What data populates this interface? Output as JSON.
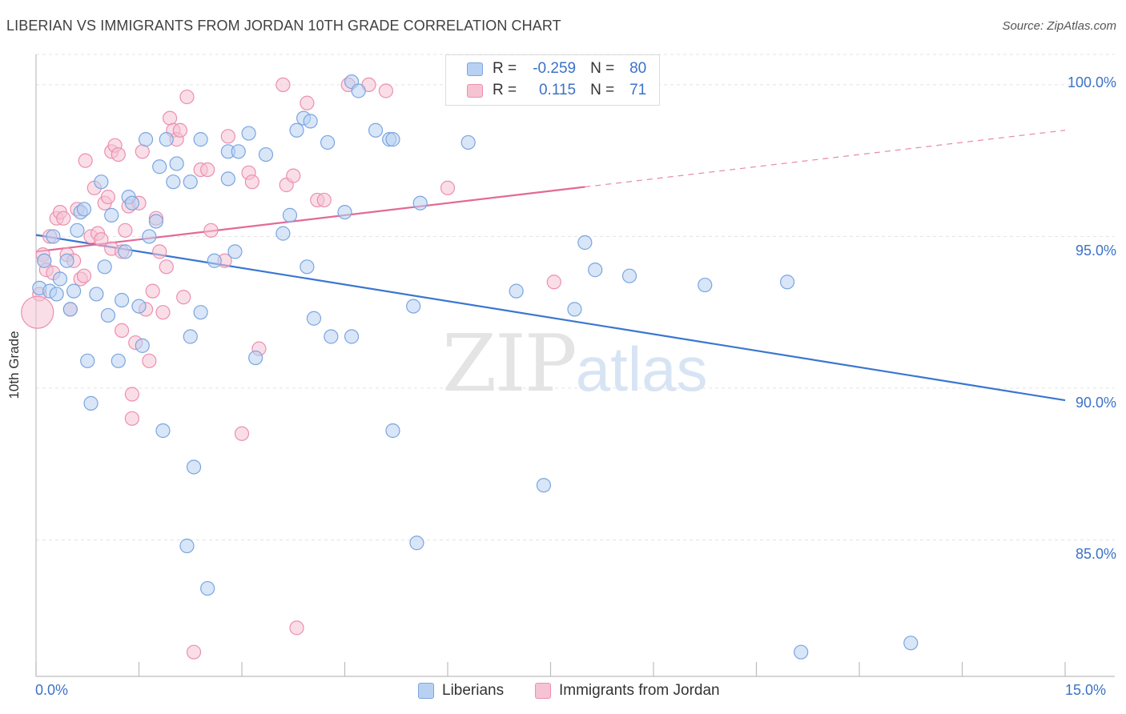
{
  "header": {
    "title": "LIBERIAN VS IMMIGRANTS FROM JORDAN 10TH GRADE CORRELATION CHART",
    "source": "Source: ZipAtlas.com"
  },
  "watermark": {
    "part_a": "ZIP",
    "part_b": "atlas"
  },
  "legend_top": {
    "rows": [
      {
        "r_label": "R =",
        "r_value": "-0.259",
        "n_label": "N =",
        "n_value": "80"
      },
      {
        "r_label": "R =",
        "r_value": "0.115",
        "n_label": "N =",
        "n_value": "71"
      }
    ]
  },
  "legend_bottom": {
    "items": [
      "Liberians",
      "Immigrants from Jordan"
    ]
  },
  "colors": {
    "blue_fill": "#b8d1f3",
    "blue_stroke": "#7ba5e0",
    "blue_line": "#3a76d0",
    "pink_fill": "#f6c3d3",
    "pink_stroke": "#ec8fae",
    "pink_line": "#e26a96",
    "grid": "#e3e3e3",
    "tick_text": "#3b72c8"
  },
  "chart_data": {
    "type": "scatter",
    "title": "LIBERIAN VS IMMIGRANTS FROM JORDAN 10TH GRADE CORRELATION CHART",
    "xlabel": "",
    "ylabel": "10th Grade",
    "xlim": [
      0,
      15
    ],
    "ylim": [
      80.5,
      101.0
    ],
    "x_tick_labels": [
      "0.0%",
      "15.0%"
    ],
    "y_ticks": [
      85,
      90,
      95,
      100
    ],
    "y_tick_labels": [
      "85.0%",
      "90.0%",
      "95.0%",
      "100.0%"
    ],
    "grid": true,
    "legend_position": "top-center",
    "series": [
      {
        "name": "Liberians",
        "r": -0.259,
        "n": 80,
        "trend": {
          "x_start": 0,
          "y_start": 95.05,
          "x_end": 15,
          "y_end": 89.6,
          "dashed_from_x": null
        },
        "points": [
          [
            0.05,
            93.3
          ],
          [
            0.12,
            94.2
          ],
          [
            0.2,
            93.2
          ],
          [
            0.25,
            95.0
          ],
          [
            0.3,
            93.1
          ],
          [
            0.35,
            93.6
          ],
          [
            0.45,
            94.2
          ],
          [
            0.5,
            92.6
          ],
          [
            0.55,
            93.2
          ],
          [
            0.6,
            95.2
          ],
          [
            0.65,
            95.8
          ],
          [
            0.7,
            95.9
          ],
          [
            0.75,
            90.9
          ],
          [
            0.8,
            89.5
          ],
          [
            0.88,
            93.1
          ],
          [
            0.95,
            96.8
          ],
          [
            1.0,
            94.0
          ],
          [
            1.05,
            92.4
          ],
          [
            1.1,
            95.7
          ],
          [
            1.2,
            90.9
          ],
          [
            1.25,
            92.9
          ],
          [
            1.3,
            94.5
          ],
          [
            1.35,
            96.3
          ],
          [
            1.4,
            96.1
          ],
          [
            1.5,
            92.7
          ],
          [
            1.55,
            91.4
          ],
          [
            1.6,
            98.2
          ],
          [
            1.65,
            95.0
          ],
          [
            1.75,
            95.5
          ],
          [
            1.8,
            97.3
          ],
          [
            1.85,
            88.6
          ],
          [
            1.9,
            98.2
          ],
          [
            2.0,
            96.8
          ],
          [
            2.05,
            97.4
          ],
          [
            2.2,
            84.8
          ],
          [
            2.25,
            96.8
          ],
          [
            2.25,
            91.7
          ],
          [
            2.3,
            87.4
          ],
          [
            2.4,
            98.2
          ],
          [
            2.4,
            92.5
          ],
          [
            2.5,
            83.4
          ],
          [
            2.6,
            94.2
          ],
          [
            2.8,
            97.8
          ],
          [
            2.8,
            96.9
          ],
          [
            2.9,
            94.5
          ],
          [
            2.95,
            97.8
          ],
          [
            3.1,
            98.4
          ],
          [
            3.2,
            91.0
          ],
          [
            3.35,
            97.7
          ],
          [
            3.6,
            95.1
          ],
          [
            3.7,
            95.7
          ],
          [
            3.8,
            98.5
          ],
          [
            3.9,
            98.9
          ],
          [
            3.95,
            94.0
          ],
          [
            4.0,
            98.8
          ],
          [
            4.05,
            92.3
          ],
          [
            4.25,
            98.1
          ],
          [
            4.3,
            91.7
          ],
          [
            4.5,
            95.8
          ],
          [
            4.6,
            91.7
          ],
          [
            4.6,
            100.1
          ],
          [
            4.7,
            99.8
          ],
          [
            4.95,
            98.5
          ],
          [
            5.15,
            98.2
          ],
          [
            5.2,
            98.2
          ],
          [
            5.2,
            88.6
          ],
          [
            5.5,
            92.7
          ],
          [
            5.55,
            84.9
          ],
          [
            5.6,
            96.1
          ],
          [
            6.3,
            98.1
          ],
          [
            7.0,
            93.2
          ],
          [
            7.4,
            86.8
          ],
          [
            7.85,
            92.6
          ],
          [
            8.0,
            94.8
          ],
          [
            8.15,
            93.9
          ],
          [
            8.65,
            93.7
          ],
          [
            9.75,
            93.4
          ],
          [
            10.95,
            93.5
          ],
          [
            11.15,
            81.3
          ],
          [
            12.75,
            81.6
          ]
        ]
      },
      {
        "name": "Immigrants from Jordan",
        "r": 0.115,
        "n": 71,
        "trend": {
          "x_start": 0,
          "y_start": 94.5,
          "x_end": 15,
          "y_end": 98.5,
          "dashed_from_x": 8.0
        },
        "points": [
          [
            0.05,
            93.1
          ],
          [
            0.1,
            94.4
          ],
          [
            0.12,
            94.2
          ],
          [
            0.15,
            93.9
          ],
          [
            0.2,
            95.0
          ],
          [
            0.25,
            93.8
          ],
          [
            0.3,
            95.6
          ],
          [
            0.35,
            95.8
          ],
          [
            0.4,
            95.6
          ],
          [
            0.45,
            94.4
          ],
          [
            0.5,
            92.6
          ],
          [
            0.55,
            94.2
          ],
          [
            0.6,
            95.9
          ],
          [
            0.65,
            93.6
          ],
          [
            0.7,
            93.7
          ],
          [
            0.72,
            97.5
          ],
          [
            0.8,
            95.0
          ],
          [
            0.85,
            96.6
          ],
          [
            0.9,
            95.1
          ],
          [
            0.95,
            94.9
          ],
          [
            1.0,
            96.1
          ],
          [
            1.05,
            96.3
          ],
          [
            1.1,
            97.8
          ],
          [
            1.1,
            94.6
          ],
          [
            1.15,
            98.0
          ],
          [
            1.2,
            97.7
          ],
          [
            1.25,
            94.5
          ],
          [
            1.25,
            91.9
          ],
          [
            1.3,
            95.2
          ],
          [
            1.35,
            96.0
          ],
          [
            1.4,
            89.8
          ],
          [
            1.4,
            89.0
          ],
          [
            1.45,
            91.5
          ],
          [
            1.5,
            96.1
          ],
          [
            1.55,
            97.8
          ],
          [
            1.6,
            92.6
          ],
          [
            1.65,
            90.9
          ],
          [
            1.7,
            93.2
          ],
          [
            1.75,
            95.6
          ],
          [
            1.8,
            94.5
          ],
          [
            1.85,
            92.5
          ],
          [
            1.9,
            94.0
          ],
          [
            1.95,
            98.9
          ],
          [
            2.0,
            98.5
          ],
          [
            2.05,
            98.2
          ],
          [
            2.1,
            98.5
          ],
          [
            2.15,
            93.0
          ],
          [
            2.2,
            99.6
          ],
          [
            2.3,
            81.3
          ],
          [
            2.4,
            97.2
          ],
          [
            2.5,
            97.2
          ],
          [
            2.55,
            95.2
          ],
          [
            2.75,
            94.2
          ],
          [
            2.8,
            98.3
          ],
          [
            3.0,
            88.5
          ],
          [
            3.1,
            97.1
          ],
          [
            3.15,
            96.8
          ],
          [
            3.25,
            91.3
          ],
          [
            3.6,
            100.0
          ],
          [
            3.65,
            96.7
          ],
          [
            3.75,
            97.0
          ],
          [
            3.8,
            82.1
          ],
          [
            3.95,
            99.4
          ],
          [
            4.1,
            96.2
          ],
          [
            4.2,
            96.2
          ],
          [
            4.55,
            100.0
          ],
          [
            4.85,
            100.0
          ],
          [
            5.1,
            99.8
          ],
          [
            6.0,
            96.6
          ],
          [
            7.55,
            93.5
          ],
          [
            0.02,
            92.5
          ]
        ]
      }
    ]
  },
  "y_axis_label": "10th Grade"
}
